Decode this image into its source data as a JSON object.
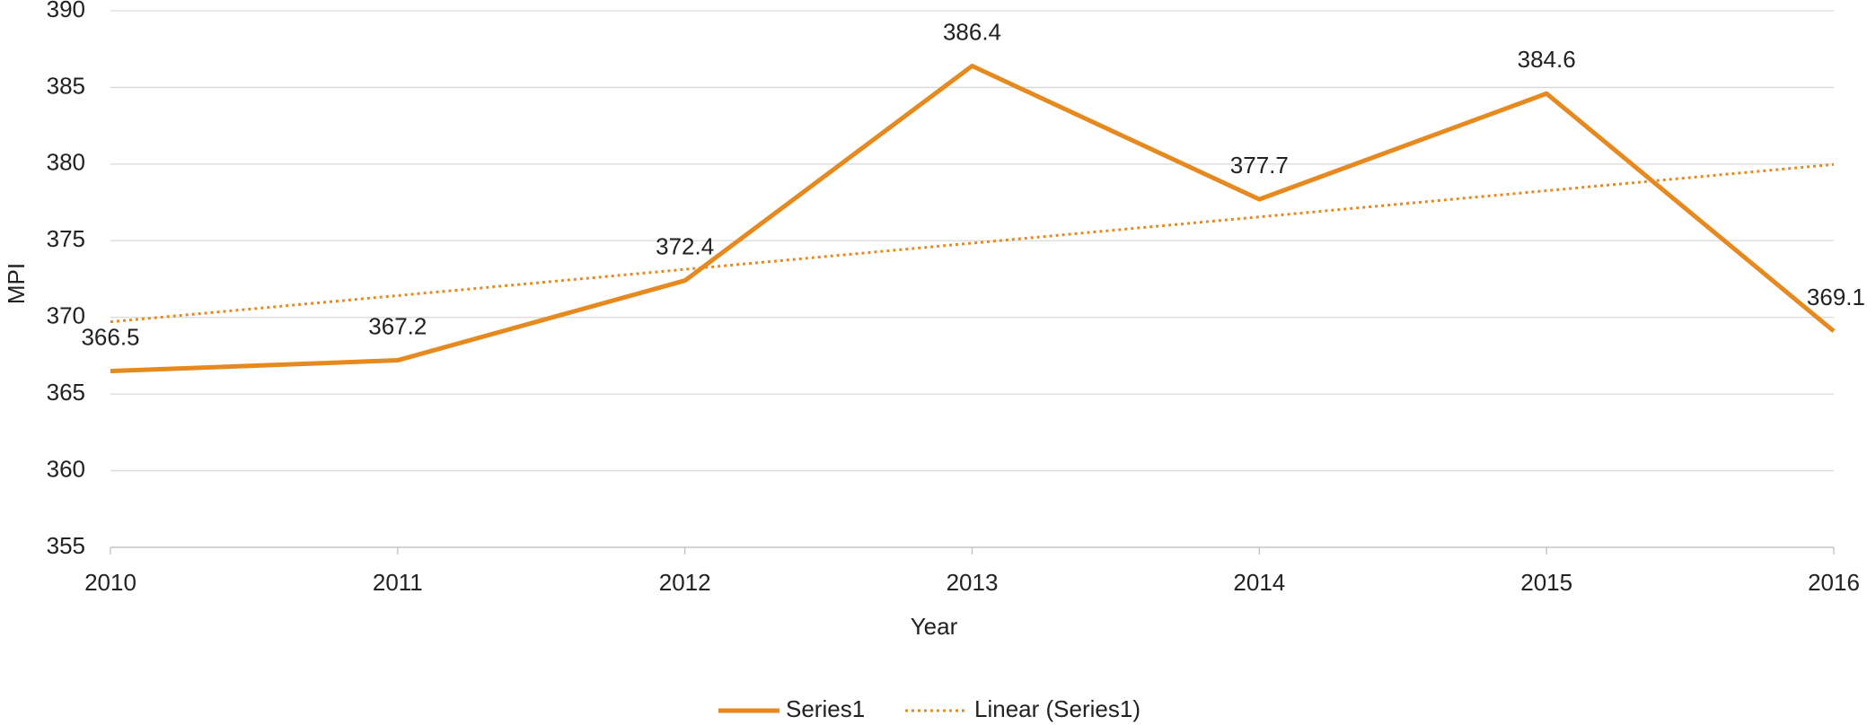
{
  "chart_data": {
    "type": "line",
    "x_label": "Year",
    "y_label": "MPI",
    "categories": [
      "2010",
      "2011",
      "2012",
      "2013",
      "2014",
      "2015",
      "2016"
    ],
    "series": [
      {
        "name": "Series1",
        "color": "#e6891f",
        "values": [
          366.5,
          367.2,
          372.4,
          386.4,
          377.7,
          384.6,
          369.1
        ]
      }
    ],
    "trendline": {
      "name": "Linear (Series1)",
      "type": "linear",
      "color": "#e6891f"
    },
    "ylim": [
      355,
      390
    ],
    "yticks": [
      355,
      360,
      365,
      370,
      375,
      380,
      385,
      390
    ],
    "grid": true,
    "legend": "bottom"
  }
}
